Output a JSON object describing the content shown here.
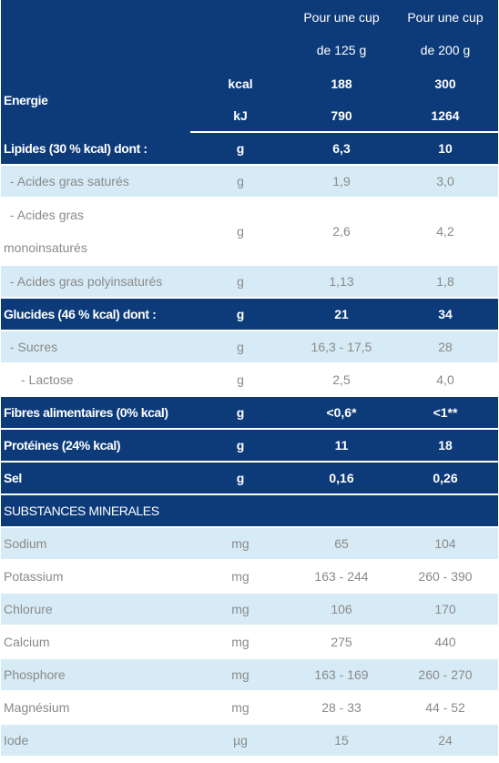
{
  "header": {
    "col_125_line1": "Pour une cup",
    "col_125_line2": "de 125 g",
    "col_200_line1": "Pour une cup",
    "col_200_line2": "de 200 g"
  },
  "energie": {
    "label": "Energie",
    "kcal": {
      "unit": "kcal",
      "v125": "188",
      "v200": "300"
    },
    "kj": {
      "unit": "kJ",
      "v125": "790",
      "v200": "1264"
    }
  },
  "rows": [
    {
      "label": "Lipides (30 % kcal) dont :",
      "unit": "g",
      "v125": "6,3",
      "v200": "10"
    },
    {
      "label": "- Acides gras saturés",
      "unit": "g",
      "v125": "1,9",
      "v200": "3,0"
    },
    {
      "label_l1": "- Acides gras",
      "label_l2": "monoinsaturés",
      "unit": "g",
      "v125": "2,6",
      "v200": "4,2"
    },
    {
      "label": "- Acides gras polyinsaturés",
      "unit": "g",
      "v125": "1,13",
      "v200": "1,8"
    },
    {
      "label": "Glucides (46 % kcal) dont :",
      "unit": "g",
      "v125": "21",
      "v200": "34"
    },
    {
      "label": "- Sucres",
      "unit": "g",
      "v125": "16,3 - 17,5",
      "v200": "28"
    },
    {
      "label": "- Lactose",
      "unit": "g",
      "v125": "2,5",
      "v200": "4,0"
    },
    {
      "label": "Fibres alimentaires (0% kcal)",
      "unit": "g",
      "v125": "<0,6*",
      "v200": "<1**"
    },
    {
      "label": "Protéines (24% kcal)",
      "unit": "g",
      "v125": "11",
      "v200": "18"
    },
    {
      "label": "Sel",
      "unit": "g",
      "v125": "0,16",
      "v200": "0,26"
    }
  ],
  "minerals_header": "SUBSTANCES MINERALES",
  "minerals": [
    {
      "label": "Sodium",
      "unit": "mg",
      "v125": "65",
      "v200": "104"
    },
    {
      "label": "Potassium",
      "unit": "mg",
      "v125": "163 - 244",
      "v200": "260 - 390"
    },
    {
      "label": "Chlorure",
      "unit": "mg",
      "v125": "106",
      "v200": "170"
    },
    {
      "label": "Calcium",
      "unit": "mg",
      "v125": "275",
      "v200": "440"
    },
    {
      "label": "Phosphore",
      "unit": "mg",
      "v125": "163 - 169",
      "v200": "260 - 270"
    },
    {
      "label": "Magnésium",
      "unit": "mg",
      "v125": "28 - 33",
      "v200": "44 - 52"
    },
    {
      "label": "Iode",
      "unit": "µg",
      "v125": "15",
      "v200": "24"
    }
  ]
}
